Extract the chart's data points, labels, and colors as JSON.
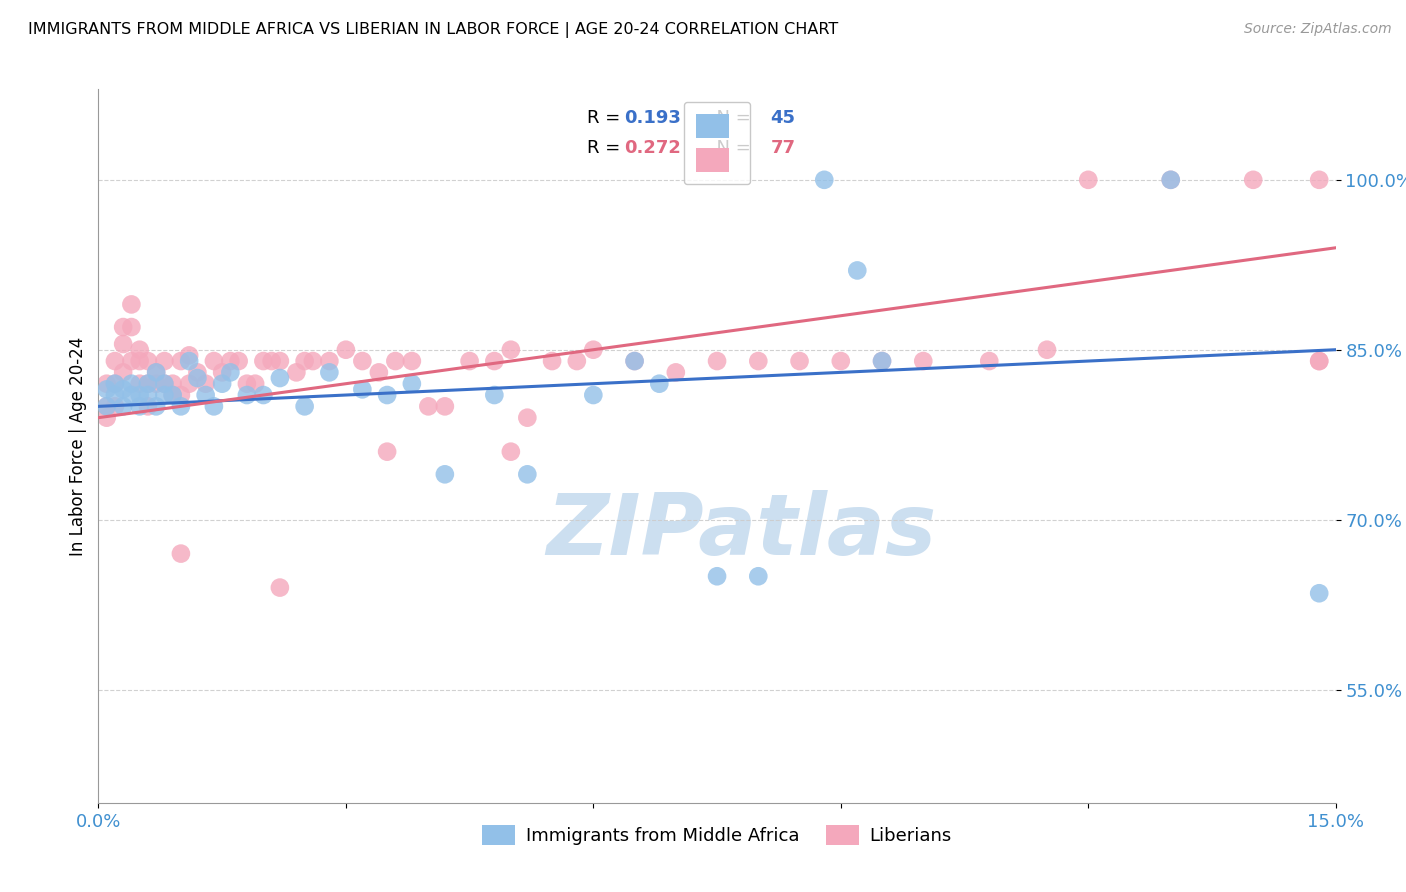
{
  "title": "IMMIGRANTS FROM MIDDLE AFRICA VS LIBERIAN IN LABOR FORCE | AGE 20-24 CORRELATION CHART",
  "source": "Source: ZipAtlas.com",
  "ylabel": "In Labor Force | Age 20-24",
  "x_min": 0.0,
  "x_max": 0.15,
  "y_min": 0.45,
  "y_max": 1.08,
  "y_ticks": [
    0.55,
    0.7,
    0.85,
    1.0
  ],
  "y_tick_labels": [
    "55.0%",
    "70.0%",
    "85.0%",
    "100.0%"
  ],
  "legend_blue_r": "0.193",
  "legend_blue_n": "45",
  "legend_pink_r": "0.272",
  "legend_pink_n": "77",
  "blue_color": "#92c0e8",
  "pink_color": "#f4a8bc",
  "blue_line_color": "#3a70c8",
  "pink_line_color": "#e06880",
  "watermark_color": "#ccdff0",
  "tick_color": "#4090d0",
  "blue_x": [
    0.001,
    0.001,
    0.002,
    0.002,
    0.003,
    0.003,
    0.004,
    0.004,
    0.005,
    0.005,
    0.006,
    0.006,
    0.007,
    0.007,
    0.008,
    0.008,
    0.009,
    0.01,
    0.011,
    0.012,
    0.013,
    0.014,
    0.015,
    0.016,
    0.018,
    0.02,
    0.022,
    0.025,
    0.028,
    0.032,
    0.035,
    0.038,
    0.042,
    0.048,
    0.052,
    0.06,
    0.065,
    0.068,
    0.075,
    0.08,
    0.088,
    0.092,
    0.095,
    0.13,
    0.148
  ],
  "blue_y": [
    0.815,
    0.8,
    0.82,
    0.81,
    0.8,
    0.815,
    0.82,
    0.81,
    0.8,
    0.81,
    0.82,
    0.81,
    0.83,
    0.8,
    0.82,
    0.81,
    0.81,
    0.8,
    0.84,
    0.825,
    0.81,
    0.8,
    0.82,
    0.83,
    0.81,
    0.81,
    0.825,
    0.8,
    0.83,
    0.815,
    0.81,
    0.82,
    0.74,
    0.81,
    0.74,
    0.81,
    0.84,
    0.82,
    0.65,
    0.65,
    1.0,
    0.92,
    0.84,
    1.0,
    0.635
  ],
  "pink_x": [
    0.001,
    0.001,
    0.001,
    0.002,
    0.002,
    0.002,
    0.003,
    0.003,
    0.003,
    0.004,
    0.004,
    0.004,
    0.005,
    0.005,
    0.005,
    0.006,
    0.006,
    0.006,
    0.007,
    0.007,
    0.008,
    0.008,
    0.009,
    0.009,
    0.01,
    0.01,
    0.011,
    0.011,
    0.012,
    0.013,
    0.014,
    0.015,
    0.016,
    0.017,
    0.018,
    0.019,
    0.02,
    0.021,
    0.022,
    0.024,
    0.025,
    0.026,
    0.028,
    0.03,
    0.032,
    0.034,
    0.036,
    0.038,
    0.04,
    0.042,
    0.045,
    0.048,
    0.05,
    0.052,
    0.055,
    0.058,
    0.06,
    0.065,
    0.07,
    0.075,
    0.08,
    0.085,
    0.09,
    0.095,
    0.1,
    0.108,
    0.115,
    0.12,
    0.13,
    0.14,
    0.148,
    0.148,
    0.148,
    0.05,
    0.035,
    0.022,
    0.01
  ],
  "pink_y": [
    0.82,
    0.8,
    0.79,
    0.84,
    0.82,
    0.8,
    0.87,
    0.855,
    0.83,
    0.89,
    0.87,
    0.84,
    0.85,
    0.84,
    0.82,
    0.84,
    0.82,
    0.8,
    0.83,
    0.82,
    0.84,
    0.82,
    0.82,
    0.81,
    0.84,
    0.81,
    0.845,
    0.82,
    0.83,
    0.82,
    0.84,
    0.83,
    0.84,
    0.84,
    0.82,
    0.82,
    0.84,
    0.84,
    0.84,
    0.83,
    0.84,
    0.84,
    0.84,
    0.85,
    0.84,
    0.83,
    0.84,
    0.84,
    0.8,
    0.8,
    0.84,
    0.84,
    0.85,
    0.79,
    0.84,
    0.84,
    0.85,
    0.84,
    0.83,
    0.84,
    0.84,
    0.84,
    0.84,
    0.84,
    0.84,
    0.84,
    0.85,
    1.0,
    1.0,
    1.0,
    1.0,
    0.84,
    0.84,
    0.76,
    0.76,
    0.64,
    0.67
  ],
  "blue_trend_x0": 0.0,
  "blue_trend_x1": 0.15,
  "blue_trend_y0": 0.8,
  "blue_trend_y1": 0.85,
  "pink_trend_x0": 0.0,
  "pink_trend_x1": 0.15,
  "pink_trend_y0": 0.79,
  "pink_trend_y1": 0.94
}
